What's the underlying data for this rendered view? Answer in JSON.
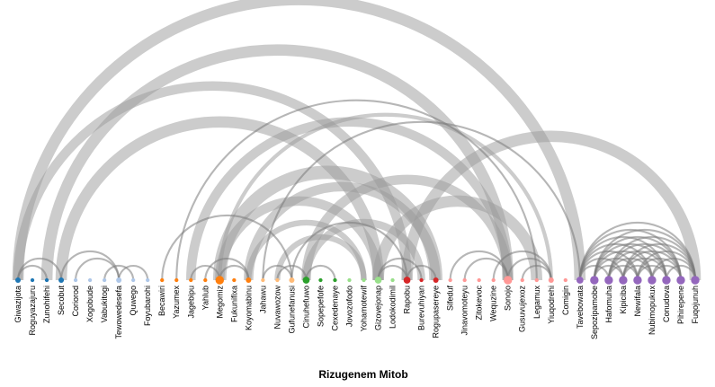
{
  "chart_data": {
    "type": "arc-diagram",
    "title": "Rizugenem Mitob",
    "nodes": [
      {
        "name": "Giwazijota",
        "color": "#1f77b4",
        "size": 2
      },
      {
        "name": "Roguyazajuru",
        "color": "#1f77b4",
        "size": 1
      },
      {
        "name": "Zunohifehi",
        "color": "#1f77b4",
        "size": 1
      },
      {
        "name": "Secobut",
        "color": "#1f77b4",
        "size": 2
      },
      {
        "name": "Coriorod",
        "color": "#aec7e8",
        "size": 1
      },
      {
        "name": "Xogobude",
        "color": "#aec7e8",
        "size": 1
      },
      {
        "name": "Vabukitogi",
        "color": "#aec7e8",
        "size": 1
      },
      {
        "name": "Tewowedesefa",
        "color": "#aec7e8",
        "size": 2
      },
      {
        "name": "Quwego",
        "color": "#aec7e8",
        "size": 1
      },
      {
        "name": "Foyubarohi",
        "color": "#aec7e8",
        "size": 1
      },
      {
        "name": "Becawiri",
        "color": "#ff7f0e",
        "size": 1
      },
      {
        "name": "Yazumex",
        "color": "#ff7f0e",
        "size": 1
      },
      {
        "name": "Jagebipu",
        "color": "#ff7f0e",
        "size": 1
      },
      {
        "name": "Yahlub",
        "color": "#ff7f0e",
        "size": 1
      },
      {
        "name": "Megomiz",
        "color": "#ff7f0e",
        "size": 4
      },
      {
        "name": "Fukunifixa",
        "color": "#ff7f0e",
        "size": 1
      },
      {
        "name": "Koyomabinu",
        "color": "#ff7f0e",
        "size": 2
      },
      {
        "name": "Jahawu",
        "color": "#ffbb78",
        "size": 1
      },
      {
        "name": "Nuvawozow",
        "color": "#ffbb78",
        "size": 1
      },
      {
        "name": "Gufunefanusi",
        "color": "#ffbb78",
        "size": 2
      },
      {
        "name": "Cinuhefuwo",
        "color": "#2ca02c",
        "size": 3
      },
      {
        "name": "Sopepefofe",
        "color": "#2ca02c",
        "size": 1
      },
      {
        "name": "Cexedenaye",
        "color": "#2ca02c",
        "size": 1
      },
      {
        "name": "Jovozofodo",
        "color": "#98df8a",
        "size": 1
      },
      {
        "name": "Yohamotewif",
        "color": "#98df8a",
        "size": 1
      },
      {
        "name": "Gizovejonap",
        "color": "#98df8a",
        "size": 3
      },
      {
        "name": "Lodokodimil",
        "color": "#98df8a",
        "size": 1
      },
      {
        "name": "Rapobu",
        "color": "#d62728",
        "size": 3
      },
      {
        "name": "Burevuhiyan",
        "color": "#d62728",
        "size": 1
      },
      {
        "name": "Rogupasereye",
        "color": "#d62728",
        "size": 2
      },
      {
        "name": "Sifeduf",
        "color": "#ff9896",
        "size": 1
      },
      {
        "name": "Jinavomoteyu",
        "color": "#ff9896",
        "size": 1
      },
      {
        "name": "Zitokevoc",
        "color": "#ff9896",
        "size": 1
      },
      {
        "name": "Wequzine",
        "color": "#ff9896",
        "size": 1
      },
      {
        "name": "Sonojo",
        "color": "#ff9896",
        "size": 4
      },
      {
        "name": "Gusuvujexoz",
        "color": "#ff9896",
        "size": 1
      },
      {
        "name": "Legamux",
        "color": "#ff9896",
        "size": 1
      },
      {
        "name": "Yiuqodrehi",
        "color": "#ff9896",
        "size": 2
      },
      {
        "name": "Comigin",
        "color": "#ff9896",
        "size": 1
      },
      {
        "name": "Tavebowata",
        "color": "#9467bd",
        "size": 3
      },
      {
        "name": "Sepozipamobe",
        "color": "#9467bd",
        "size": 4
      },
      {
        "name": "Hafomuha",
        "color": "#9467bd",
        "size": 4
      },
      {
        "name": "Kipiciba",
        "color": "#9467bd",
        "size": 4
      },
      {
        "name": "Newifala",
        "color": "#9467bd",
        "size": 4
      },
      {
        "name": "Nubimopukux",
        "color": "#9467bd",
        "size": 4
      },
      {
        "name": "Conudova",
        "color": "#9467bd",
        "size": 4
      },
      {
        "name": "Pihirepene",
        "color": "#9467bd",
        "size": 4
      },
      {
        "name": "Fuqojunuh",
        "color": "#9467bd",
        "size": 4
      }
    ],
    "links": [
      {
        "source": 0,
        "target": 39,
        "value": 6
      },
      {
        "source": 0,
        "target": 27,
        "value": 5
      },
      {
        "source": 2,
        "target": 34,
        "value": 6
      },
      {
        "source": 3,
        "target": 25,
        "value": 6
      },
      {
        "source": 11,
        "target": 36,
        "value": 1
      },
      {
        "source": 12,
        "target": 34,
        "value": 5
      },
      {
        "source": 14,
        "target": 37,
        "value": 2
      },
      {
        "source": 14,
        "target": 29,
        "value": 7
      },
      {
        "source": 14,
        "target": 25,
        "value": 5
      },
      {
        "source": 16,
        "target": 29,
        "value": 5
      },
      {
        "source": 17,
        "target": 39,
        "value": 1
      },
      {
        "source": 20,
        "target": 34,
        "value": 5
      },
      {
        "source": 19,
        "target": 27,
        "value": 1
      },
      {
        "source": 20,
        "target": 28,
        "value": 4
      },
      {
        "source": 25,
        "target": 36,
        "value": 6
      },
      {
        "source": 27,
        "target": 47,
        "value": 6
      },
      {
        "source": 10,
        "target": 19,
        "value": 1
      },
      {
        "source": 16,
        "target": 24,
        "value": 3
      },
      {
        "source": 18,
        "target": 24,
        "value": 3
      },
      {
        "source": 0,
        "target": 3,
        "value": 1
      },
      {
        "source": 0,
        "target": 2,
        "value": 1
      },
      {
        "source": 3,
        "target": 7,
        "value": 1
      },
      {
        "source": 4,
        "target": 7,
        "value": 1
      },
      {
        "source": 7,
        "target": 9,
        "value": 1
      },
      {
        "source": 6,
        "target": 8,
        "value": 1
      },
      {
        "source": 12,
        "target": 14,
        "value": 1
      },
      {
        "source": 13,
        "target": 16,
        "value": 1
      },
      {
        "source": 14,
        "target": 16,
        "value": 1
      },
      {
        "source": 17,
        "target": 19,
        "value": 1
      },
      {
        "source": 18,
        "target": 20,
        "value": 1
      },
      {
        "source": 20,
        "target": 22,
        "value": 1
      },
      {
        "source": 25,
        "target": 28,
        "value": 1
      },
      {
        "source": 25,
        "target": 27,
        "value": 1
      },
      {
        "source": 27,
        "target": 29,
        "value": 1
      },
      {
        "source": 30,
        "target": 34,
        "value": 1
      },
      {
        "source": 31,
        "target": 34,
        "value": 1
      },
      {
        "source": 33,
        "target": 37,
        "value": 1
      },
      {
        "source": 34,
        "target": 37,
        "value": 1
      },
      {
        "source": 35,
        "target": 37,
        "value": 1
      },
      {
        "source": 39,
        "target": 47,
        "value": 1
      },
      {
        "source": 39,
        "target": 46,
        "value": 1
      },
      {
        "source": 39,
        "target": 45,
        "value": 1
      },
      {
        "source": 39,
        "target": 44,
        "value": 1
      },
      {
        "source": 39,
        "target": 43,
        "value": 1
      },
      {
        "source": 39,
        "target": 42,
        "value": 1
      },
      {
        "source": 39,
        "target": 41,
        "value": 1
      },
      {
        "source": 40,
        "target": 47,
        "value": 1
      },
      {
        "source": 40,
        "target": 46,
        "value": 1
      },
      {
        "source": 40,
        "target": 45,
        "value": 1
      },
      {
        "source": 40,
        "target": 44,
        "value": 1
      },
      {
        "source": 40,
        "target": 43,
        "value": 1
      },
      {
        "source": 40,
        "target": 42,
        "value": 1
      },
      {
        "source": 41,
        "target": 47,
        "value": 1
      },
      {
        "source": 41,
        "target": 46,
        "value": 1
      },
      {
        "source": 41,
        "target": 45,
        "value": 1
      },
      {
        "source": 41,
        "target": 44,
        "value": 1
      },
      {
        "source": 41,
        "target": 43,
        "value": 1
      },
      {
        "source": 42,
        "target": 47,
        "value": 1
      },
      {
        "source": 42,
        "target": 46,
        "value": 1
      },
      {
        "source": 42,
        "target": 45,
        "value": 1
      },
      {
        "source": 42,
        "target": 44,
        "value": 1
      },
      {
        "source": 43,
        "target": 47,
        "value": 1
      },
      {
        "source": 43,
        "target": 46,
        "value": 1
      },
      {
        "source": 43,
        "target": 45,
        "value": 1
      },
      {
        "source": 44,
        "target": 47,
        "value": 1
      },
      {
        "source": 44,
        "target": 46,
        "value": 1
      },
      {
        "source": 45,
        "target": 47,
        "value": 1
      }
    ]
  }
}
